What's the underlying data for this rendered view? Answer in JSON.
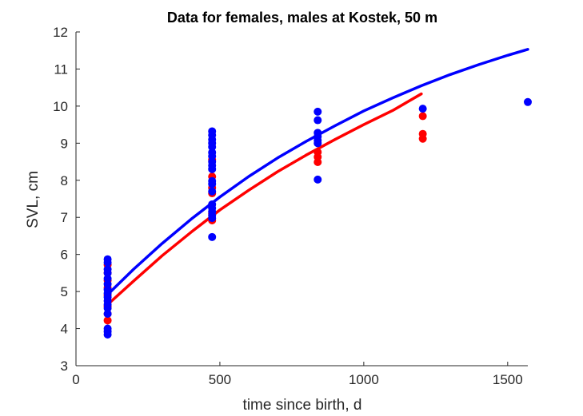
{
  "colors": {
    "female": "#ff0000",
    "male": "#0000ff",
    "axis": "#262626",
    "background": "#ffffff"
  },
  "chart_data": {
    "type": "scatter",
    "title": "Data for females, males at Kostek, 50 m",
    "xlabel": "time since birth, d",
    "ylabel": "SVL, cm",
    "xlim": [
      0,
      1570
    ],
    "ylim": [
      3,
      12
    ],
    "xticks": [
      0,
      500,
      1000,
      1500
    ],
    "yticks": [
      3,
      4,
      5,
      6,
      7,
      8,
      9,
      10,
      11,
      12
    ],
    "grid": false,
    "legend": "none",
    "series": [
      {
        "kind": "points",
        "color": "#ff0000",
        "points": [
          [
            110,
            5.72
          ],
          [
            110,
            5.5
          ],
          [
            110,
            5.3
          ],
          [
            110,
            5.1
          ],
          [
            110,
            4.9
          ],
          [
            110,
            4.6
          ],
          [
            110,
            4.4
          ],
          [
            110,
            4.22
          ],
          [
            473,
            8.55
          ],
          [
            473,
            8.1
          ],
          [
            473,
            7.8
          ],
          [
            473,
            7.65
          ],
          [
            473,
            7.1
          ],
          [
            473,
            6.92
          ],
          [
            840,
            8.76
          ],
          [
            840,
            8.63
          ],
          [
            840,
            8.49
          ],
          [
            1205,
            9.73
          ],
          [
            1205,
            9.25
          ],
          [
            1205,
            9.12
          ]
        ]
      },
      {
        "kind": "points",
        "color": "#0000ff",
        "points": [
          [
            110,
            5.87
          ],
          [
            110,
            5.78
          ],
          [
            110,
            5.6
          ],
          [
            110,
            5.5
          ],
          [
            110,
            5.35
          ],
          [
            110,
            5.2
          ],
          [
            110,
            5.05
          ],
          [
            110,
            4.95
          ],
          [
            110,
            4.85
          ],
          [
            110,
            4.75
          ],
          [
            110,
            4.65
          ],
          [
            110,
            4.55
          ],
          [
            110,
            4.4
          ],
          [
            110,
            4.0
          ],
          [
            110,
            3.92
          ],
          [
            110,
            3.84
          ],
          [
            473,
            9.32
          ],
          [
            473,
            9.22
          ],
          [
            473,
            9.1
          ],
          [
            473,
            9.0
          ],
          [
            473,
            8.9
          ],
          [
            473,
            8.75
          ],
          [
            473,
            8.65
          ],
          [
            473,
            8.5
          ],
          [
            473,
            8.4
          ],
          [
            473,
            8.3
          ],
          [
            473,
            7.98
          ],
          [
            473,
            7.9
          ],
          [
            473,
            7.7
          ],
          [
            473,
            7.35
          ],
          [
            473,
            7.25
          ],
          [
            473,
            7.15
          ],
          [
            473,
            7.05
          ],
          [
            473,
            6.98
          ],
          [
            473,
            6.47
          ],
          [
            840,
            9.85
          ],
          [
            840,
            9.62
          ],
          [
            840,
            9.28
          ],
          [
            840,
            9.18
          ],
          [
            840,
            9.08
          ],
          [
            840,
            9.0
          ],
          [
            840,
            8.02
          ],
          [
            1205,
            9.93
          ],
          [
            1570,
            10.11
          ]
        ]
      },
      {
        "kind": "curve",
        "color": "#ff0000",
        "x": [
          110,
          200,
          300,
          400,
          500,
          600,
          700,
          800,
          900,
          1000,
          1100,
          1200
        ],
        "y": [
          4.65,
          5.28,
          5.97,
          6.6,
          7.2,
          7.73,
          8.23,
          8.68,
          9.1,
          9.5,
          9.88,
          10.33
        ]
      },
      {
        "kind": "curve",
        "color": "#0000ff",
        "x": [
          110,
          200,
          300,
          400,
          500,
          600,
          700,
          800,
          900,
          1000,
          1100,
          1200,
          1300,
          1400,
          1500,
          1570
        ],
        "y": [
          4.92,
          5.6,
          6.3,
          6.95,
          7.55,
          8.1,
          8.6,
          9.05,
          9.47,
          9.87,
          10.22,
          10.55,
          10.85,
          11.12,
          11.37,
          11.53
        ]
      }
    ]
  }
}
